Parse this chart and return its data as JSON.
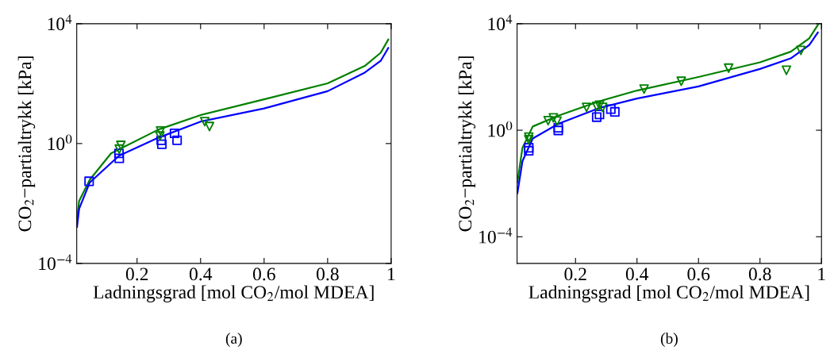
{
  "chart_data": [
    {
      "type": "line",
      "xlabel": "Ladningsgrad [mol CO$_{2}$/mol MDEA]",
      "ylabel": "CO$_{2}$−partialtrykk [kPa]",
      "log": "y",
      "xlim": [
        0.01,
        1
      ],
      "ylim": [
        0.0001,
        10000
      ],
      "xticks": [
        0.2,
        0.4,
        0.6,
        0.8,
        1
      ],
      "yticks": [
        {
          "value": 0.0001,
          "label": "10$^{−4}$"
        },
        {
          "value": 1,
          "label": "10$^{0}$"
        },
        {
          "value": 10000,
          "label": "10$^{4}$"
        }
      ],
      "grid": false,
      "legend": false,
      "annotations": [
        "(a)"
      ],
      "series": [
        {
          "color": "#008000",
          "x": [
            0.011,
            0.0175,
            0.051,
            0.118,
            0.268,
            0.4,
            0.6,
            0.8,
            0.917,
            0.967,
            0.991
          ],
          "values": [
            0.00295,
            0.012,
            0.062,
            0.47,
            2.95,
            8.9,
            30,
            102,
            389,
            1070,
            2950
          ]
        },
        {
          "color": "#0000ff",
          "x": [
            0.011,
            0.0175,
            0.051,
            0.143,
            0.268,
            0.4,
            0.6,
            0.8,
            0.917,
            0.967,
            0.991
          ],
          "values": [
            0.00166,
            0.0066,
            0.05,
            0.39,
            1.58,
            5.4,
            14.8,
            56,
            234,
            575,
            1550
          ]
        },
        {
          "type": "scatter",
          "marker": "square",
          "color": "#0000ff",
          "x": [
            0.049,
            0.143,
            0.144,
            0.276,
            0.278,
            0.318,
            0.326
          ],
          "values": [
            0.055,
            0.47,
            0.32,
            1.29,
            0.95,
            2.19,
            1.29
          ]
        },
        {
          "type": "scatter",
          "marker": "triangle",
          "color": "#008000",
          "x": [
            0.149,
            0.144,
            0.274,
            0.272,
            0.413,
            0.428
          ],
          "values": [
            0.87,
            0.65,
            2.63,
            1.78,
            5.4,
            3.7
          ]
        }
      ]
    },
    {
      "type": "line",
      "xlabel": "Ladningsgrad [mol CO$_{2}$/mol MDEA]",
      "ylabel": "CO$_{2}$−partialtrykk [kPa]",
      "log": "y",
      "xlim": [
        0.01,
        1
      ],
      "ylim": [
        1e-05,
        10000
      ],
      "xticks": [
        0.2,
        0.4,
        0.6,
        0.8,
        1
      ],
      "yticks": [
        {
          "value": 0.0001,
          "label": "10$^{−4}$"
        },
        {
          "value": 1,
          "label": "10$^{0}$"
        },
        {
          "value": 10000,
          "label": "10$^{4}$"
        }
      ],
      "grid": false,
      "legend": false,
      "annotations": [
        "(b)"
      ],
      "series": [
        {
          "color": "#008000",
          "x": [
            0.011,
            0.0275,
            0.061,
            0.144,
            0.278,
            0.4,
            0.6,
            0.8,
            0.9,
            0.96,
            0.988
          ],
          "values": [
            0.011,
            0.22,
            1.38,
            3.5,
            12.3,
            31,
            100,
            355,
            890,
            2820,
            8900
          ]
        },
        {
          "color": "#0000ff",
          "x": [
            0.011,
            0.0275,
            0.061,
            0.144,
            0.278,
            0.4,
            0.6,
            0.8,
            0.9,
            0.96,
            0.988
          ],
          "values": [
            0.0043,
            0.069,
            0.49,
            1.74,
            6.9,
            15.5,
            44,
            200,
            500,
            1580,
            4680
          ]
        },
        {
          "type": "scatter",
          "marker": "square",
          "color": "#0000ff",
          "x": [
            0.048,
            0.048,
            0.144,
            0.144,
            0.269,
            0.278,
            0.315,
            0.328
          ],
          "values": [
            0.22,
            0.17,
            1.23,
            0.98,
            3.1,
            3.9,
            6.2,
            4.9
          ]
        },
        {
          "type": "scatter",
          "marker": "triangle",
          "color": "#008000",
          "x": [
            0.048,
            0.048,
            0.111,
            0.128,
            0.14,
            0.236,
            0.269,
            0.278,
            0.288,
            0.423,
            0.544,
            0.698,
            0.886,
            0.933
          ],
          "values": [
            0.55,
            0.44,
            2.3,
            2.9,
            2.2,
            7.2,
            7.8,
            8.7,
            7.2,
            35,
            69,
            214,
            178,
            1000
          ]
        }
      ]
    }
  ]
}
